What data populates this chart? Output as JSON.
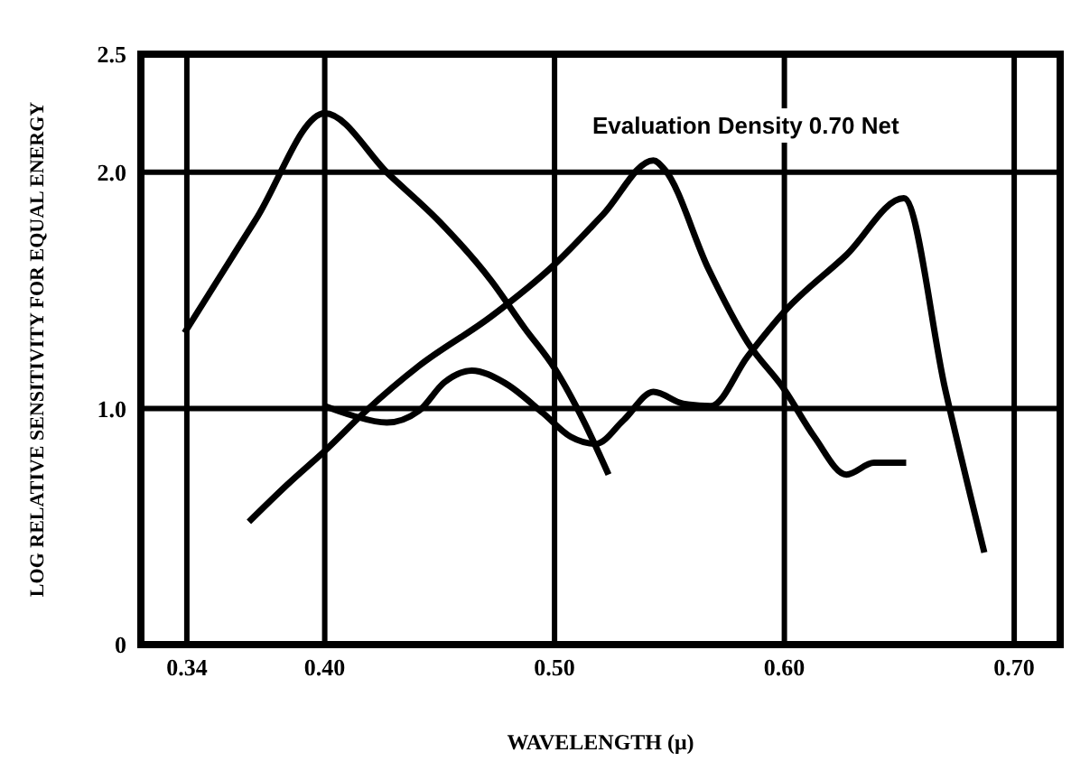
{
  "chart_data": {
    "type": "line",
    "xlabel": "WAVELENGTH (μ)",
    "ylabel": "LOG RELATIVE SENSITIVITY FOR EQUAL ENERGY",
    "annotations": [
      "Evaluation Density 0.70 Net"
    ],
    "xlim": [
      0.32,
      0.72
    ],
    "xticks": [
      0.34,
      {
        "value": 0.4,
        "label": "0.40"
      },
      {
        "value": 0.5,
        "label": "0.50"
      },
      {
        "value": 0.6,
        "label": "0.60"
      },
      {
        "value": 0.7,
        "label": "0.70"
      }
    ],
    "ylim": [
      0,
      2.5
    ],
    "yticks": [
      0,
      {
        "value": 1,
        "label": "1.0"
      },
      {
        "value": 2,
        "label": "2.0"
      },
      2.5
    ],
    "grid": true,
    "marker": "none",
    "line_style": "solid",
    "series": [
      {
        "color": "#000000",
        "x": [
          0.339,
          0.37,
          0.4,
          0.428,
          0.45,
          0.4725,
          0.487,
          0.5,
          0.513,
          0.5235
        ],
        "values": [
          1.32,
          1.8,
          2.25,
          1.99,
          1.79,
          1.54,
          1.34,
          1.17,
          0.94,
          0.72
        ]
      },
      {
        "color": "#000000",
        "x": [
          0.367,
          0.384,
          0.4,
          0.418,
          0.441,
          0.4725,
          0.5,
          0.521,
          0.543,
          0.548,
          0.567,
          0.584,
          0.6,
          0.613,
          0.627,
          0.639,
          0.653
        ],
        "values": [
          0.52,
          0.68,
          0.82,
          0.99,
          1.18,
          1.39,
          1.61,
          1.82,
          2.05,
          2.01,
          1.59,
          1.28,
          1.08,
          0.88,
          0.72,
          0.77,
          0.77
        ]
      },
      {
        "color": "#000000",
        "x": [
          0.4,
          0.412,
          0.427,
          0.441,
          0.452,
          0.464,
          0.478,
          0.495,
          0.507,
          0.518,
          0.53,
          0.543,
          0.556,
          0.568,
          0.584,
          0.6,
          0.627,
          0.652,
          0.67,
          0.687
        ],
        "values": [
          1.01,
          0.97,
          0.94,
          0.99,
          1.11,
          1.16,
          1.11,
          0.98,
          0.88,
          0.85,
          0.95,
          1.07,
          1.02,
          1.01,
          1.22,
          1.41,
          1.65,
          1.89,
          1.08,
          0.39
        ]
      }
    ]
  }
}
